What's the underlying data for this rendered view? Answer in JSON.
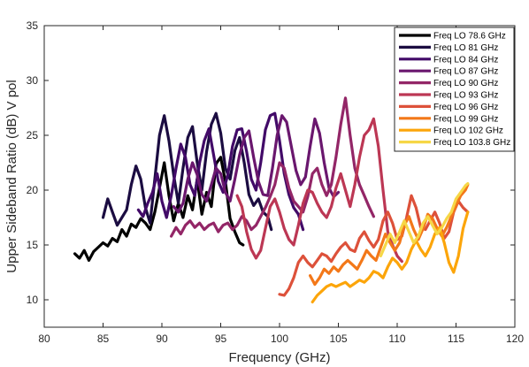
{
  "chart_data": {
    "type": "line",
    "title": "",
    "xlabel": "Frequency (GHz)",
    "ylabel": "Upper Sideband Ratio (dB) V pol",
    "xlim": [
      80,
      120
    ],
    "ylim": [
      7.5,
      35
    ],
    "xticks": [
      80,
      85,
      90,
      95,
      100,
      105,
      110,
      115,
      120
    ],
    "yticks": [
      10,
      15,
      20,
      25,
      30,
      35
    ],
    "grid": false,
    "legend_position": "top-right",
    "series": [
      {
        "name": "Freq LO 78.6 GHz",
        "color": "#000000",
        "x": [
          82.6,
          83.0,
          83.4,
          83.8,
          84.2,
          84.6,
          85.0,
          85.4,
          85.8,
          86.2,
          86.6,
          87.0,
          87.4,
          87.8,
          88.2,
          88.6,
          89.0,
          89.4,
          89.8,
          90.2,
          90.6,
          91.0,
          91.4,
          91.8,
          92.2,
          92.6,
          93.0,
          93.4,
          93.8,
          94.2,
          94.6,
          95.0,
          95.4,
          95.8,
          96.2,
          96.6,
          96.9
        ],
        "y": [
          14.2,
          13.8,
          14.5,
          13.6,
          14.4,
          14.8,
          15.2,
          14.9,
          15.6,
          15.3,
          16.4,
          15.8,
          16.9,
          16.6,
          17.4,
          17.0,
          16.4,
          18.0,
          20.2,
          22.5,
          19.5,
          17.2,
          18.8,
          17.5,
          19.5,
          18.2,
          21.0,
          17.8,
          19.8,
          18.5,
          22.4,
          23.0,
          20.8,
          17.4,
          16.2,
          15.2,
          15.0
        ]
      },
      {
        "name": "Freq LO 81 GHz",
        "color": "#1b0c41",
        "x": [
          85.0,
          85.4,
          85.8,
          86.2,
          86.6,
          87.0,
          87.4,
          87.8,
          88.2,
          88.6,
          89.0,
          89.4,
          89.8,
          90.2,
          90.6,
          91.0,
          91.4,
          91.8,
          92.2,
          92.6,
          93.0,
          93.4,
          93.8,
          94.2,
          94.6,
          95.0,
          95.4,
          95.8,
          96.2,
          96.6,
          97.0,
          97.4,
          97.8,
          98.2,
          98.6,
          99.0,
          99.3
        ],
        "y": [
          17.5,
          19.2,
          18.0,
          16.8,
          17.5,
          18.2,
          20.5,
          22.2,
          21.0,
          18.4,
          17.0,
          21.0,
          25.0,
          26.8,
          24.5,
          21.4,
          18.8,
          22.0,
          24.8,
          25.8,
          22.5,
          20.0,
          23.5,
          26.0,
          27.0,
          25.2,
          22.0,
          21.0,
          23.6,
          24.8,
          22.5,
          19.6,
          18.6,
          19.2,
          18.0,
          17.6,
          16.4
        ]
      },
      {
        "name": "Freq LO 84 GHz",
        "color": "#420a68",
        "x": [
          88.0,
          88.4,
          88.8,
          89.2,
          89.6,
          90.0,
          90.4,
          90.8,
          91.2,
          91.6,
          92.0,
          92.4,
          92.8,
          93.2,
          93.6,
          94.0,
          94.4,
          94.8,
          95.2,
          95.6,
          96.0,
          96.4,
          96.8,
          97.2,
          97.6,
          98.0,
          98.4,
          98.8,
          99.2,
          99.6,
          100.0,
          100.4,
          100.8,
          101.2,
          101.6,
          102.0
        ],
        "y": [
          18.2,
          17.6,
          18.8,
          19.8,
          21.5,
          19.0,
          17.5,
          19.5,
          22.0,
          24.2,
          23.0,
          20.5,
          19.5,
          22.5,
          24.5,
          25.6,
          23.2,
          20.8,
          19.8,
          21.4,
          24.0,
          25.5,
          25.6,
          23.5,
          21.0,
          20.0,
          22.5,
          25.5,
          26.8,
          27.0,
          24.5,
          21.5,
          19.6,
          18.4,
          17.8,
          16.4
        ]
      },
      {
        "name": "Freq LO 87 GHz",
        "color": "#6a176e",
        "x": [
          91.0,
          91.4,
          91.8,
          92.2,
          92.6,
          93.0,
          93.4,
          93.8,
          94.2,
          94.6,
          95.0,
          95.4,
          95.8,
          96.2,
          96.6,
          97.0,
          97.4,
          97.8,
          98.2,
          98.6,
          99.0,
          99.4,
          99.8,
          100.2,
          100.6,
          101.0,
          101.4,
          101.8,
          102.2,
          102.6,
          103.0,
          103.4,
          103.8,
          104.2,
          104.6,
          105.0
        ],
        "y": [
          18.5,
          18.0,
          18.8,
          21.0,
          22.5,
          21.4,
          19.6,
          19.0,
          20.5,
          22.0,
          21.5,
          19.8,
          19.0,
          21.0,
          23.2,
          24.8,
          25.4,
          23.0,
          20.8,
          19.6,
          19.5,
          22.0,
          25.0,
          26.8,
          26.2,
          24.0,
          21.8,
          20.5,
          21.2,
          24.0,
          26.5,
          25.2,
          22.5,
          20.2,
          19.4,
          19.8
        ]
      },
      {
        "name": "Freq LO 90 GHz",
        "color": "#932667",
        "x": [
          90.8,
          91.2,
          91.6,
          92.0,
          92.4,
          92.8,
          93.2,
          93.6,
          94.0,
          94.4,
          94.8,
          95.2,
          95.6,
          96.0,
          96.4,
          96.8,
          97.2,
          97.6,
          98.0,
          98.4,
          98.8,
          99.2,
          99.6,
          100.0,
          100.4,
          100.8,
          101.2,
          101.6,
          102.0,
          102.4,
          102.8,
          103.2,
          103.6,
          104.0,
          104.4,
          104.8,
          105.2,
          105.6,
          106.0,
          106.4,
          106.8,
          107.2,
          107.6,
          108.0
        ],
        "y": [
          15.8,
          16.6,
          16.0,
          16.8,
          17.2,
          16.6,
          17.0,
          16.4,
          16.8,
          17.0,
          16.2,
          16.8,
          17.0,
          16.4,
          16.8,
          17.6,
          17.2,
          16.4,
          16.8,
          17.6,
          18.4,
          19.4,
          20.5,
          22.5,
          22.0,
          20.2,
          19.0,
          18.5,
          18.0,
          19.4,
          21.5,
          22.0,
          20.5,
          19.5,
          20.5,
          23.0,
          26.0,
          28.4,
          25.0,
          22.0,
          20.5,
          19.5,
          18.5,
          17.6
        ]
      },
      {
        "name": "Freq LO 93 GHz",
        "color": "#bc3754",
        "x": [
          96.4,
          96.8,
          97.2,
          97.6,
          98.0,
          98.4,
          98.8,
          99.2,
          99.6,
          100.0,
          100.4,
          100.8,
          101.2,
          101.6,
          102.0,
          102.4,
          102.8,
          103.2,
          103.6,
          104.0,
          104.4,
          104.8,
          105.2,
          105.6,
          106.0,
          106.4,
          106.8,
          107.2,
          107.6,
          108.0,
          108.4,
          108.8,
          109.2,
          109.6,
          110.0,
          110.4
        ],
        "y": [
          19.5,
          18.5,
          16.2,
          14.6,
          13.8,
          14.5,
          16.5,
          18.5,
          19.2,
          18.0,
          16.5,
          15.5,
          15.0,
          16.8,
          18.8,
          20.0,
          19.8,
          18.8,
          18.0,
          17.5,
          18.5,
          20.2,
          21.5,
          20.0,
          18.5,
          20.5,
          23.0,
          25.0,
          25.5,
          26.5,
          24.0,
          20.0,
          16.2,
          15.0,
          14.0,
          13.5
        ]
      },
      {
        "name": "Freq LO 96 GHz",
        "color": "#dd513a",
        "x": [
          100.0,
          100.4,
          100.8,
          101.2,
          101.6,
          102.0,
          102.4,
          102.8,
          103.2,
          103.6,
          104.0,
          104.4,
          104.8,
          105.2,
          105.6,
          106.0,
          106.4,
          106.8,
          107.2,
          107.6,
          108.0,
          108.4,
          108.8,
          109.2,
          109.6,
          110.0,
          110.4,
          110.8,
          111.2,
          111.6,
          112.0,
          112.4,
          112.8,
          113.2,
          113.6,
          114.0,
          114.4,
          114.8,
          115.2,
          115.6,
          116.0
        ],
        "y": [
          10.5,
          10.4,
          11.0,
          12.0,
          13.4,
          14.0,
          13.4,
          13.0,
          13.6,
          14.2,
          14.0,
          13.5,
          14.2,
          14.8,
          15.2,
          14.6,
          14.4,
          15.6,
          16.2,
          15.4,
          14.8,
          15.5,
          17.2,
          18.0,
          17.0,
          15.5,
          15.8,
          17.5,
          19.5,
          18.4,
          16.6,
          16.4,
          17.2,
          18.0,
          17.0,
          15.6,
          16.2,
          18.0,
          19.0,
          18.4,
          18.0
        ]
      },
      {
        "name": "Freq LO 99 GHz",
        "color": "#f37819",
        "x": [
          102.6,
          103.0,
          103.4,
          103.8,
          104.2,
          104.6,
          105.0,
          105.4,
          105.8,
          106.2,
          106.6,
          107.0,
          107.4,
          107.8,
          108.2,
          108.6,
          109.0,
          109.4,
          109.8,
          110.2,
          110.6,
          111.0,
          111.4,
          111.8,
          112.2,
          112.6,
          113.0,
          113.4,
          113.8,
          114.2,
          114.6,
          115.0,
          115.4,
          115.8,
          116.0
        ],
        "y": [
          12.2,
          11.4,
          12.0,
          12.8,
          12.4,
          13.0,
          12.6,
          13.2,
          13.6,
          13.2,
          12.8,
          13.6,
          14.5,
          14.0,
          13.6,
          14.8,
          16.0,
          15.2,
          14.5,
          15.2,
          16.8,
          17.6,
          16.4,
          15.5,
          16.5,
          17.8,
          17.4,
          16.5,
          15.8,
          16.6,
          17.6,
          18.6,
          19.5,
          20.0,
          20.5
        ]
      },
      {
        "name": "Freq LO 102 GHz",
        "color": "#fca50a",
        "x": [
          102.8,
          103.2,
          103.6,
          104.0,
          104.4,
          104.8,
          105.2,
          105.6,
          106.0,
          106.4,
          106.8,
          107.2,
          107.6,
          108.0,
          108.4,
          108.8,
          109.2,
          109.6,
          110.0,
          110.4,
          110.8,
          111.2,
          111.6,
          112.0,
          112.4,
          112.8,
          113.2,
          113.6,
          114.0,
          114.4,
          114.8,
          115.2,
          115.6,
          116.0
        ],
        "y": [
          9.8,
          10.4,
          10.8,
          11.2,
          11.4,
          11.2,
          11.4,
          11.6,
          11.2,
          11.5,
          11.8,
          11.6,
          12.0,
          12.6,
          12.4,
          12.0,
          13.0,
          13.8,
          13.4,
          12.8,
          13.4,
          14.6,
          15.4,
          14.6,
          14.0,
          14.8,
          16.0,
          16.6,
          15.2,
          13.4,
          12.5,
          14.0,
          16.5,
          18.0
        ]
      },
      {
        "name": "Freq LO 103.8 GHz",
        "color": "#f6d746",
        "x": [
          108.6,
          109.0,
          109.4,
          109.8,
          110.2,
          110.6,
          111.0,
          111.4,
          111.8,
          112.2,
          112.6,
          113.0,
          113.4,
          113.8,
          114.2,
          114.6,
          115.0,
          115.4,
          115.8,
          116.0
        ],
        "y": [
          14.0,
          15.0,
          16.0,
          15.2,
          16.2,
          17.2,
          16.2,
          15.2,
          15.8,
          17.0,
          17.6,
          16.8,
          16.0,
          16.6,
          17.4,
          18.0,
          19.2,
          19.8,
          20.4,
          20.6
        ]
      }
    ]
  }
}
